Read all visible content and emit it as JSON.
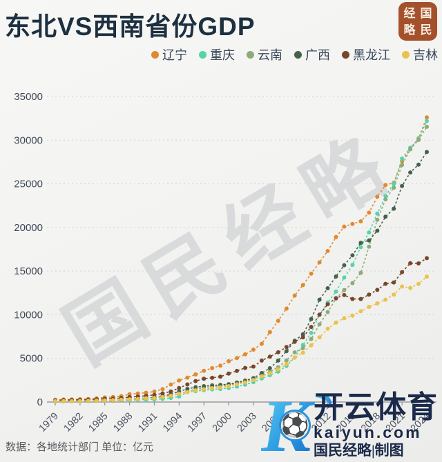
{
  "title": "东北VS西南省份GDP",
  "badge": {
    "chars": [
      "经",
      "国",
      "略",
      "民"
    ]
  },
  "watermark_diagonal": "国民经略",
  "footer": {
    "source": "数据：各地统计部门 单位：亿元"
  },
  "kaiyun": {
    "logo_letter": "K",
    "ball_icon": "⚽",
    "brand": "开云体育",
    "domain": "kaiyun.com",
    "credit": "国民经略|制图"
  },
  "chart_data": {
    "type": "line",
    "title": "东北VS西南省份GDP",
    "ylabel": "",
    "xlabel": "",
    "unit": "亿元",
    "ylim": [
      0,
      35000
    ],
    "y_ticks": [
      0,
      5000,
      10000,
      15000,
      20000,
      25000,
      30000,
      35000
    ],
    "x_tick_years": [
      1979,
      1982,
      1985,
      1988,
      1991,
      1994,
      1997,
      2000,
      2003,
      2006,
      2009,
      2012,
      2015,
      2018,
      2021,
      2024
    ],
    "grid": "dotted-horizontal",
    "legend_position": "top-right",
    "years": [
      1979,
      1980,
      1981,
      1982,
      1983,
      1984,
      1985,
      1986,
      1987,
      1988,
      1989,
      1990,
      1991,
      1992,
      1993,
      1994,
      1995,
      1996,
      1997,
      1998,
      1999,
      2000,
      2001,
      2002,
      2003,
      2004,
      2005,
      2006,
      2007,
      2008,
      2009,
      2010,
      2011,
      2012,
      2013,
      2014,
      2015,
      2016,
      2017,
      2018,
      2019,
      2020,
      2021,
      2022,
      2023,
      2024
    ],
    "series": [
      {
        "name": "辽宁",
        "color": "#e08a30",
        "values": [
          249,
          281,
          290,
          315,
          350,
          415,
          518,
          573,
          673,
          881,
          979,
          1063,
          1200,
          1473,
          2010,
          2462,
          2793,
          3158,
          3582,
          3881,
          4171,
          4669,
          5033,
          5458,
          6003,
          6672,
          8009,
          9304,
          10700,
          12200,
          13400,
          14700,
          16000,
          17300,
          18900,
          20100,
          20400,
          20700,
          21693,
          23511,
          24855,
          25115,
          27584,
          28975,
          30209,
          32613
        ]
      },
      {
        "name": "重庆",
        "color": "#55d3aa",
        "values": [
          68,
          79,
          87,
          95,
          106,
          124,
          146,
          162,
          186,
          225,
          254,
          276,
          310,
          365,
          470,
          632,
          1123,
          1245,
          1360,
          1440,
          1491,
          1604,
          1766,
          1990,
          2273,
          2693,
          3070,
          3486,
          4123,
          5097,
          6530,
          7926,
          10011,
          11410,
          12657,
          14263,
          15717,
          17741,
          19425,
          21589,
          23606,
          25003,
          27894,
          29129,
          30146,
          32193
        ]
      },
      {
        "name": "云南",
        "color": "#8cab7a",
        "values": [
          75,
          84,
          96,
          112,
          123,
          147,
          165,
          182,
          223,
          283,
          323,
          452,
          510,
          582,
          700,
          930,
          1222,
          1460,
          1644,
          1769,
          1856,
          1955,
          2138,
          2313,
          2556,
          3082,
          3462,
          3988,
          4773,
          5692,
          6170,
          7224,
          8893,
          10310,
          11832,
          12815,
          13619,
          14788,
          17800,
          20881,
          23224,
          24556,
          27147,
          28954,
          30021,
          31534
        ]
      },
      {
        "name": "广西",
        "color": "#44624a",
        "values": [
          86,
          97,
          113,
          128,
          136,
          162,
          181,
          206,
          247,
          334,
          383,
          449,
          519,
          647,
          893,
          1198,
          1498,
          1698,
          1817,
          1904,
          1953,
          2050,
          2231,
          2455,
          2735,
          3320,
          3868,
          4746,
          5823,
          7021,
          7759,
          9502,
          11721,
          13035,
          14378,
          15673,
          16803,
          18245,
          18523,
          19627,
          21237,
          22157,
          24741,
          26301,
          27202,
          28649
        ]
      },
      {
        "name": "黑龙江",
        "color": "#77462b",
        "values": [
          192,
          221,
          232,
          249,
          275,
          315,
          355,
          398,
          454,
          562,
          631,
          715,
          823,
          979,
          1199,
          1604,
          2015,
          2402,
          2668,
          2774,
          2897,
          3253,
          3561,
          3902,
          4057,
          4750,
          5200,
          5700,
          6300,
          6900,
          7400,
          8600,
          10000,
          11200,
          11900,
          12250,
          11800,
          11800,
          12300,
          12850,
          13545,
          13699,
          14879,
          15901,
          15884,
          16477
        ]
      },
      {
        "name": "吉林",
        "color": "#eac24e",
        "values": [
          91,
          98,
          106,
          117,
          133,
          159,
          175,
          213,
          249,
          312,
          342,
          425,
          450,
          558,
          718,
          937,
          1129,
          1337,
          1464,
          1577,
          1673,
          1821,
          2033,
          2246,
          2523,
          2958,
          3290,
          3755,
          4350,
          5100,
          5650,
          6500,
          7400,
          8400,
          9100,
          9600,
          9900,
          10400,
          10900,
          11300,
          11727,
          12311,
          13236,
          13070,
          13531,
          14361
        ]
      }
    ]
  }
}
